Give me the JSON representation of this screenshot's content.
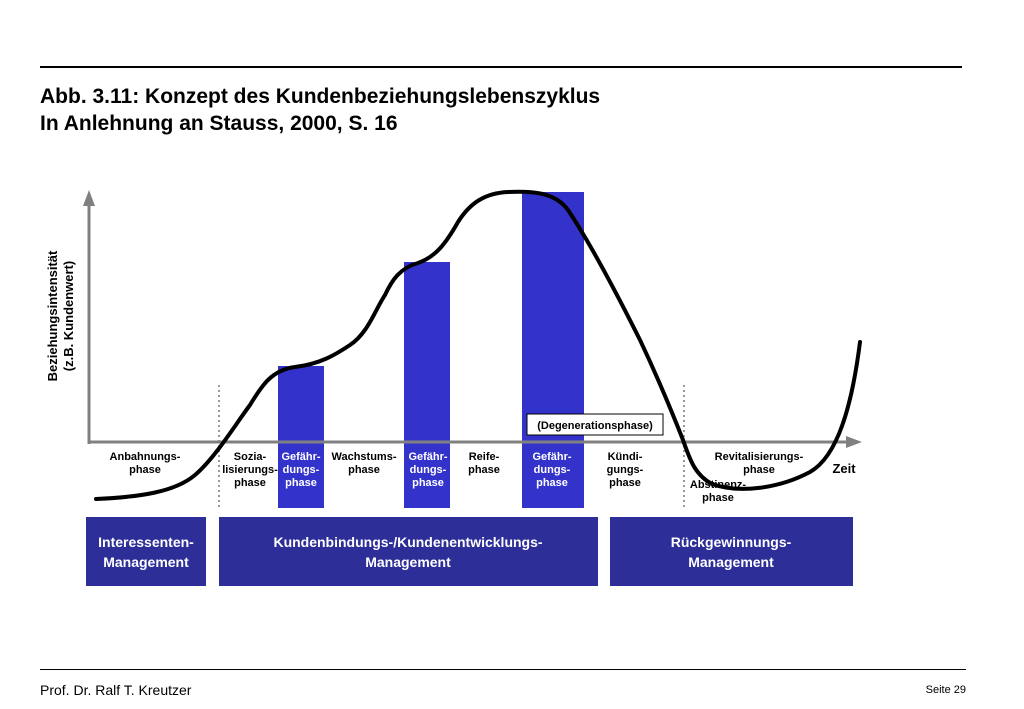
{
  "title": {
    "line1": "Abb. 3.11: Konzept des Kundenbeziehungslebenszyklus",
    "line2": "In Anlehnung an Stauss, 2000, S. 16"
  },
  "axes": {
    "y_label_1": "Beziehungsintensität",
    "y_label_2": "(z.B. Kundenwert)",
    "x_label": "Zeit"
  },
  "phases": {
    "anbahnung": [
      "Anbahnungs-",
      "phase"
    ],
    "sozialisierung": [
      "Sozia-",
      "lisierungs-",
      "phase"
    ],
    "gefaehrdung1": [
      "Gefähr-",
      "dungs-",
      "phase"
    ],
    "wachstum": [
      "Wachstums-",
      "phase"
    ],
    "gefaehrdung2": [
      "Gefähr-",
      "dungs-",
      "phase"
    ],
    "reife": [
      "Reife-",
      "phase"
    ],
    "gefaehrdung3": [
      "Gefähr-",
      "dungs-",
      "phase"
    ],
    "kuendigung": [
      "Kündi-",
      "gungs-",
      "phase"
    ],
    "revitalisierung": [
      "Revitalisierungs-",
      "phase"
    ],
    "abstinenz": [
      "Abstinenz-",
      "phase"
    ]
  },
  "degeneration_label": "(Degenerationsphase)",
  "management_boxes": {
    "interessenten": [
      "Interessenten-",
      "Management"
    ],
    "kundenbindung": [
      "Kundenbindungs-/Kundenentwicklungs-",
      "Management"
    ],
    "rueckgewinnung": [
      "Rückgewinnungs-",
      "Management"
    ]
  },
  "footer": {
    "author": "Prof. Dr. Ralf T. Kreutzer",
    "page": "Seite 29"
  },
  "colors": {
    "bar_blue": "#3333cc",
    "box_navy": "#2e2e99",
    "axis_gray": "#808080"
  }
}
